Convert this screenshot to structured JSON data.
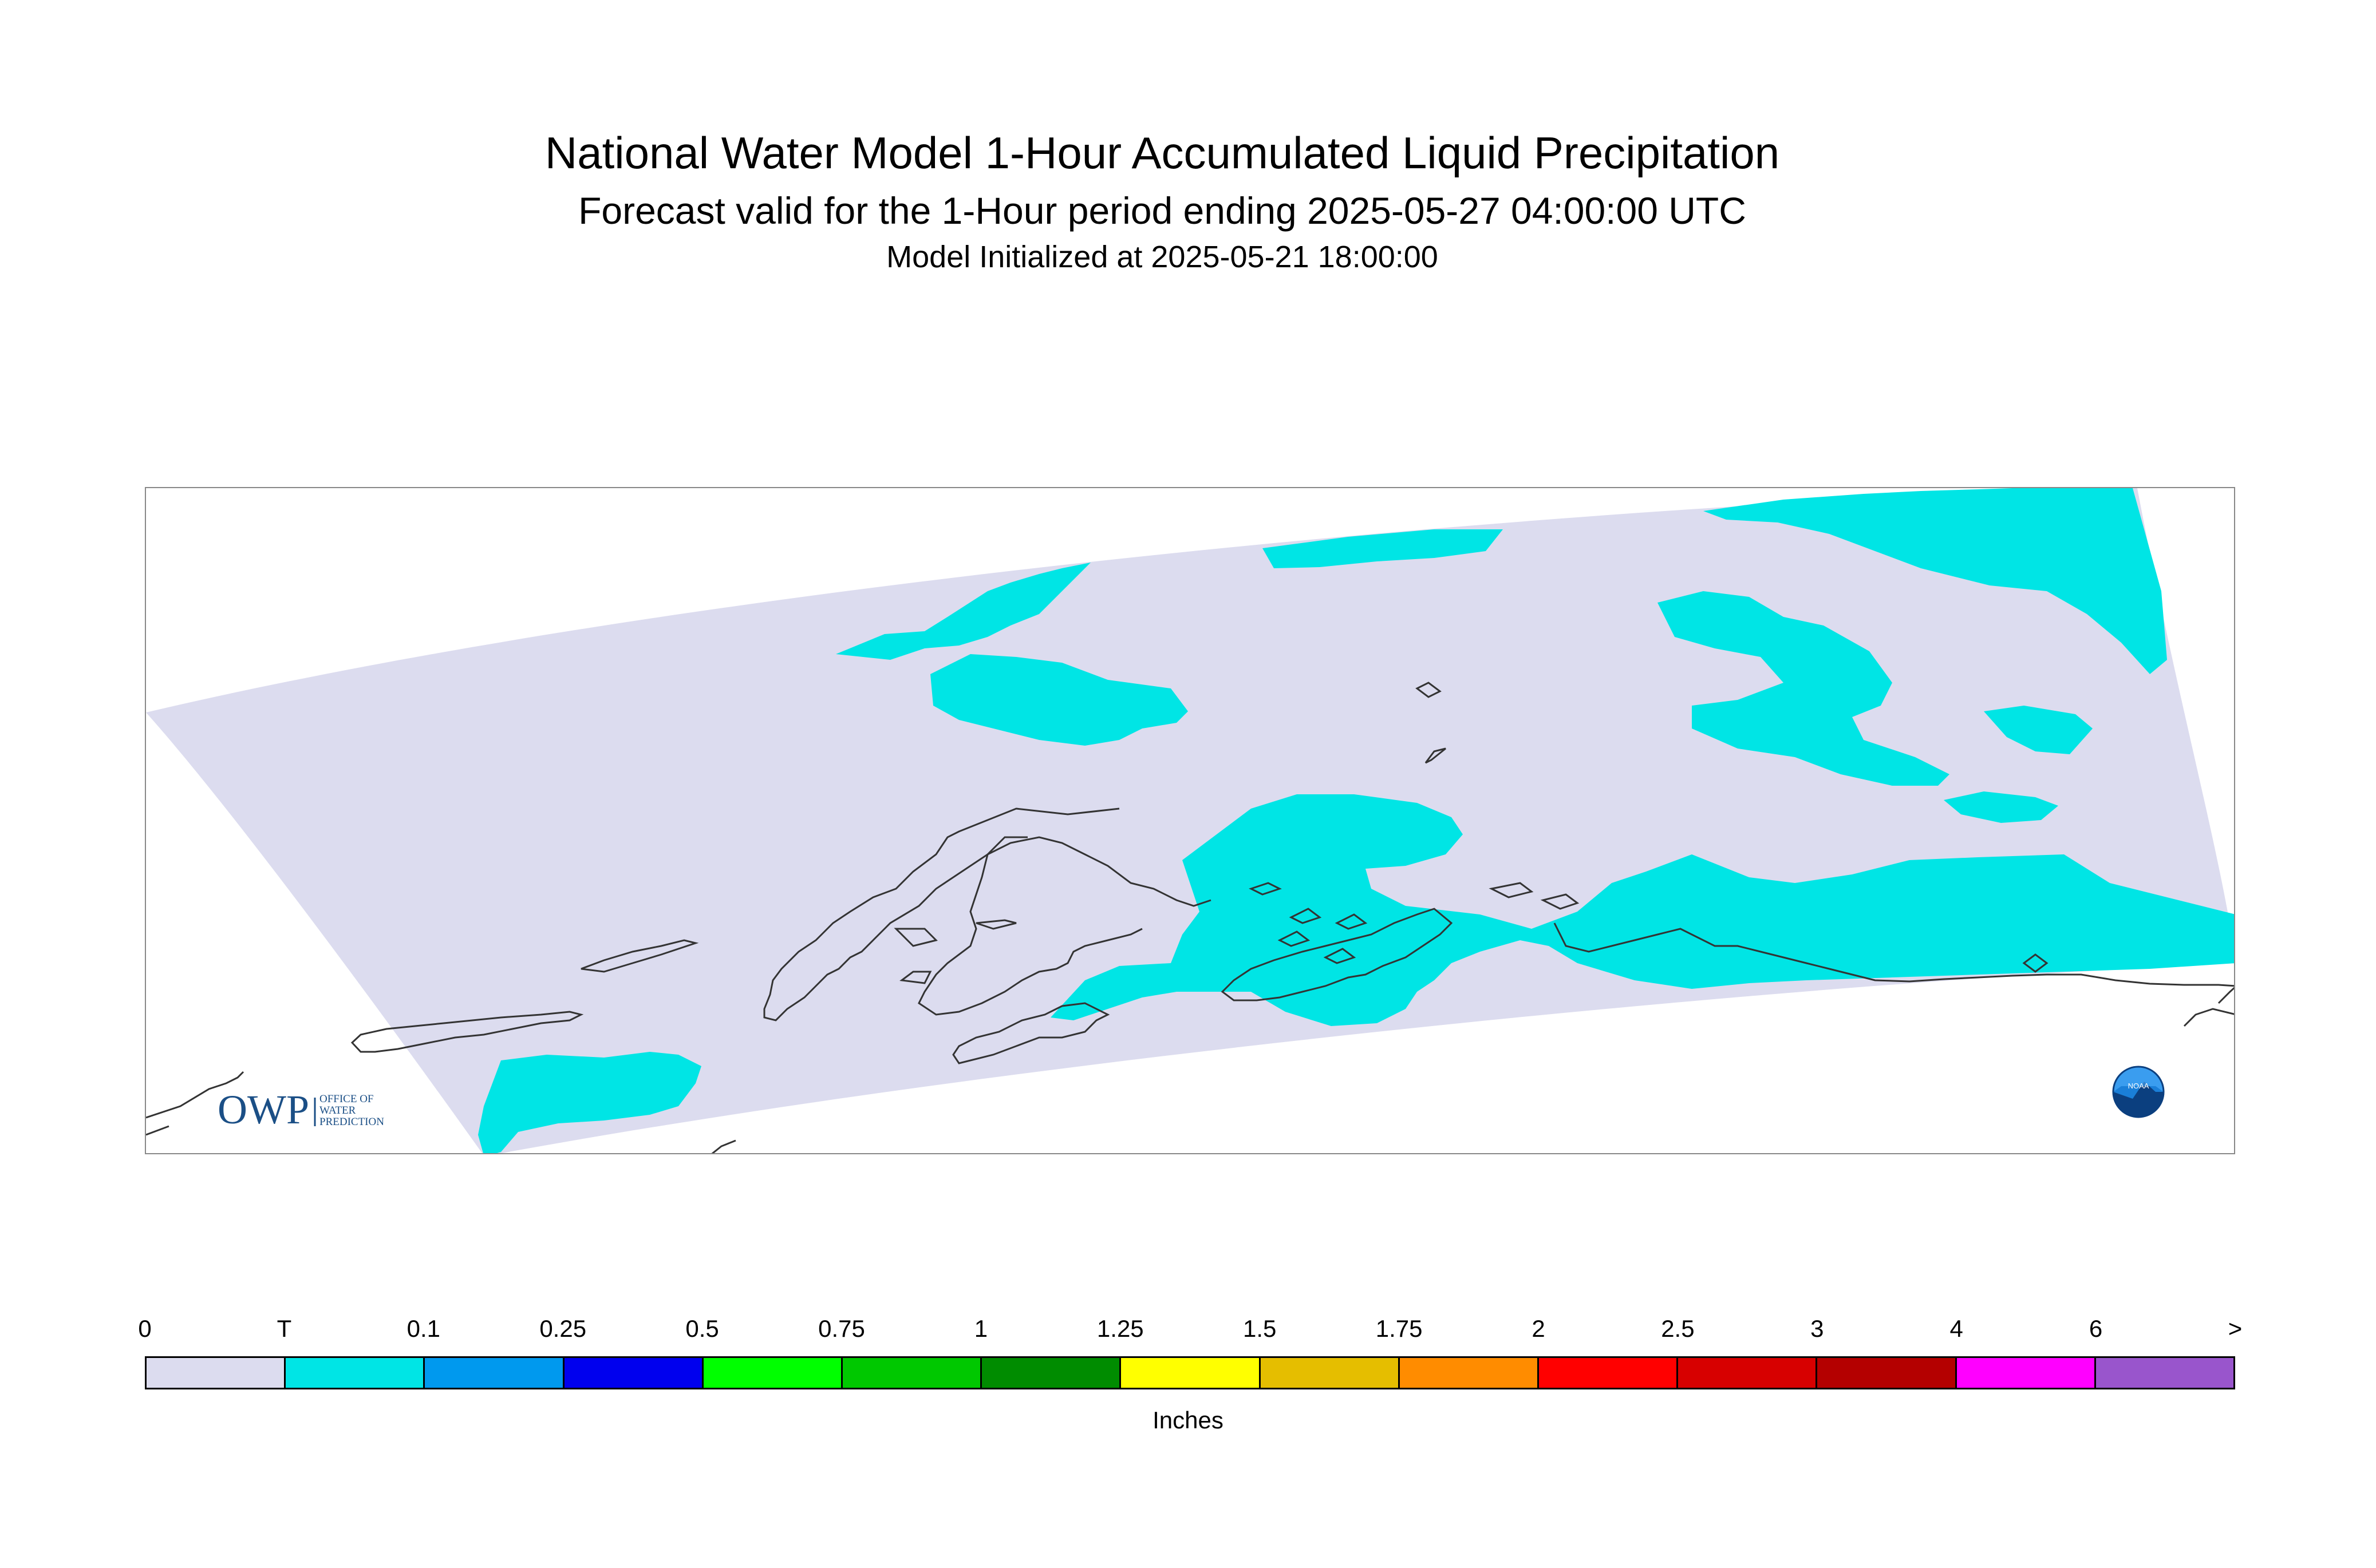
{
  "header": {
    "title": "National Water Model 1-Hour Accumulated Liquid Precipitation",
    "subtitle": "Forecast valid for the 1-Hour period ending 2025-05-27 04:00:00 UTC",
    "initialized": "Model Initialized at 2025-05-21 18:00:00"
  },
  "map": {
    "domain_fill_color": "#dcdcef",
    "precip_color_trace": "#00e5e5",
    "coastline_color": "#333333",
    "logos": {
      "owp": {
        "mark": "OWP",
        "line1": "OFFICE OF",
        "line2": "WATER",
        "line3": "PREDICTION"
      },
      "noaa": {
        "mark": "NOAA"
      }
    }
  },
  "legend": {
    "units": "Inches",
    "labels": [
      "0",
      "T",
      "0.1",
      "0.25",
      "0.5",
      "0.75",
      "1",
      "1.25",
      "1.5",
      "1.75",
      "2",
      "2.5",
      "3",
      "4",
      "6",
      ">"
    ],
    "colors": [
      "#dcdcef",
      "#00e5e5",
      "#0099ee",
      "#0000ee",
      "#00ff00",
      "#00c800",
      "#008c00",
      "#ffff00",
      "#e5be00",
      "#ff8c00",
      "#ff0000",
      "#d70000",
      "#b40000",
      "#ff00ff",
      "#9955cc"
    ]
  }
}
